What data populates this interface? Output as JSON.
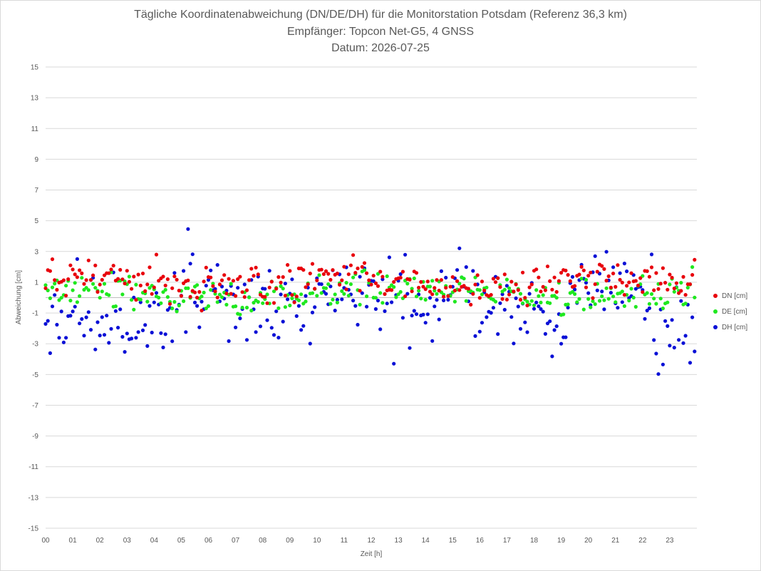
{
  "title": {
    "line1": "Tägliche Koordinatenabweichung (DN/DE/DH) für die Monitorstation Potsdam (Referenz 36,3 km)",
    "line2": "Empfänger: Topcon Net-G5, 4 GNSS",
    "line3": "Datum: 2026-07-25"
  },
  "chart_data": {
    "type": "scatter",
    "title": "Tägliche Koordinatenabweichung (DN/DE/DH) für die Monitorstation Potsdam (Referenz 36,3 km)",
    "xlabel": "Zeit [h]",
    "ylabel": "Abweichung [cm]",
    "xlim": [
      0,
      24
    ],
    "ylim": [
      -15,
      15
    ],
    "x_tick_labels": [
      "00",
      "01",
      "02",
      "03",
      "04",
      "05",
      "06",
      "07",
      "08",
      "09",
      "10",
      "11",
      "12",
      "13",
      "14",
      "15",
      "16",
      "17",
      "18",
      "19",
      "20",
      "21",
      "22",
      "23"
    ],
    "y_tick_labels": [
      "15",
      "13",
      "11",
      "9",
      "7",
      "5",
      "3",
      "1",
      "-1",
      "-3",
      "-5",
      "-7",
      "-9",
      "-11",
      "-13",
      "-15"
    ],
    "legend_position": "right",
    "grid": "horizontal",
    "series": [
      {
        "name": "DN [cm]",
        "color": "#e8000b",
        "x": [],
        "y": []
      },
      {
        "name": "DE [cm]",
        "color": "#1fe81f",
        "x": [],
        "y": []
      },
      {
        "name": "DH [cm]",
        "color": "#0a10d6",
        "x": [],
        "y": []
      }
    ]
  }
}
